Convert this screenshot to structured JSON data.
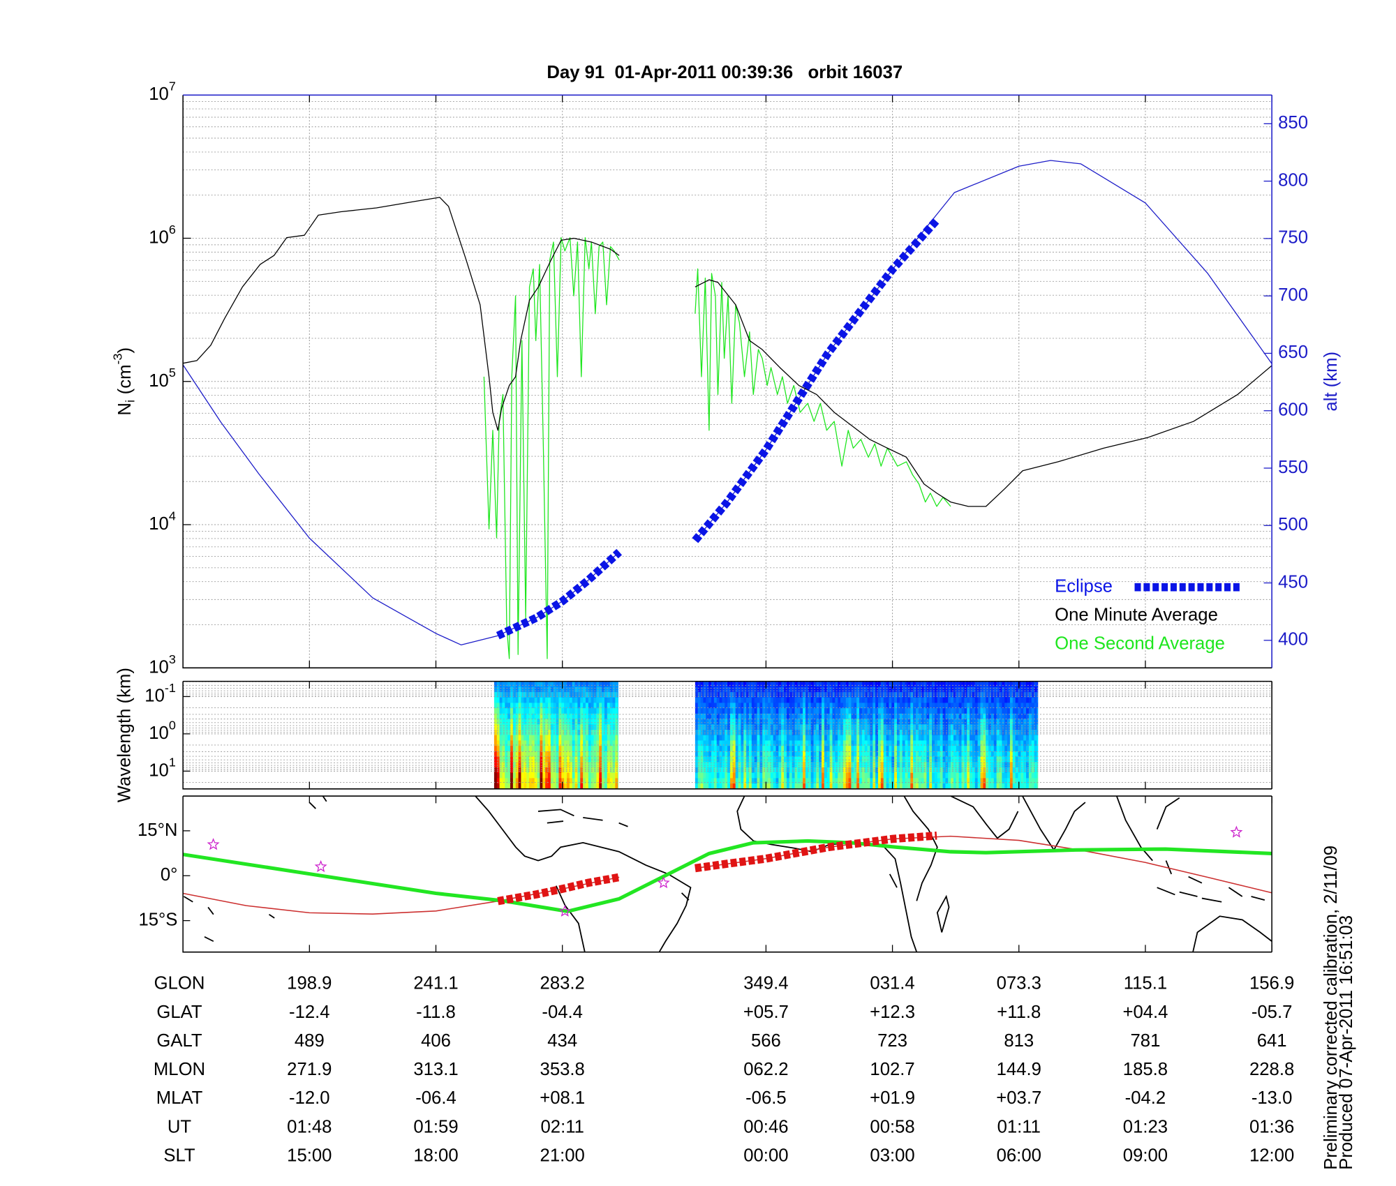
{
  "chart_data": [
    {
      "type": "line",
      "title": "Day 91  01-Apr-2011 00:39:36   orbit 16037",
      "ylabel": {
        "symbol": "N",
        "subscript": "i",
        "unit": "(cm",
        "exponent": "-3",
        "close": ")"
      },
      "y2label": "alt (km)",
      "y2_color": "#1c1cc8",
      "xlim": [
        0,
        8.61
      ],
      "xticks": [
        1,
        2,
        3,
        4.61,
        5.61,
        6.61,
        7.61,
        8.61
      ],
      "ylim": [
        1000,
        10000000
      ],
      "yscale": "log",
      "yticks": [
        {
          "value": 1000,
          "label": "10",
          "exponent": "3"
        },
        {
          "value": 10000,
          "label": "10",
          "exponent": "4"
        },
        {
          "value": 100000,
          "label": "10",
          "exponent": "5"
        },
        {
          "value": 1000000,
          "label": "10",
          "exponent": "6"
        },
        {
          "value": 10000000,
          "label": "10",
          "exponent": "7"
        }
      ],
      "y2lim": [
        376,
        875
      ],
      "y2ticks": [
        400,
        450,
        500,
        550,
        600,
        650,
        700,
        750,
        800,
        850
      ],
      "grid": true,
      "legend": "lower right",
      "series": [
        {
          "name": "Eclipse",
          "color": "#0a14e6",
          "axis": "y2",
          "style": "dashed",
          "x": [
            2.49,
            2.8,
            3.0,
            3.2,
            3.45,
            3.75,
            4.05,
            4.3,
            4.61,
            5.1,
            5.61,
            5.96
          ],
          "values": [
            404,
            420,
            434,
            452,
            477,
            null,
            487,
            520,
            566,
            650,
            723,
            766
          ]
        },
        {
          "name": "One Minute Average",
          "color": "#000000",
          "style": "thin",
          "x": [
            0,
            0.11,
            0.22,
            0.33,
            0.47,
            0.61,
            0.72,
            0.82,
            0.96,
            1.07,
            1.25,
            1.53,
            1.82,
            2.03,
            2.1,
            2.24,
            2.35,
            2.42,
            2.45,
            2.49,
            2.52,
            2.58,
            2.63,
            2.67,
            2.74,
            2.81,
            2.91,
            2.99,
            3.09,
            3.23,
            3.38,
            3.45,
            3.75,
            4.05,
            4.16,
            4.23,
            4.37,
            4.48,
            4.58,
            4.72,
            4.87,
            5.01,
            5.15,
            5.29,
            5.43,
            5.57,
            5.72,
            5.86,
            5.96,
            6.07,
            6.21,
            6.35,
            6.5,
            6.64,
            6.92,
            7.28,
            7.63,
            7.99,
            8.34,
            8.61
          ],
          "values": [
            134000,
            140000,
            179000,
            276000,
            457000,
            656000,
            758000,
            1010000,
            1050000,
            1450000,
            1530000,
            1630000,
            1800000,
            1930000,
            1670000,
            704000,
            343000,
            108000,
            60800,
            45600,
            65300,
            93700,
            108000,
            193000,
            369000,
            457000,
            704000,
            968000,
            1000000,
            940000,
            838000,
            758000,
            null,
            457000,
            513000,
            492000,
            343000,
            193000,
            167000,
            125000,
            93700,
            81100,
            60800,
            49000,
            39400,
            34200,
            29600,
            19200,
            16600,
            14400,
            13400,
            13400,
            17900,
            23800,
            27500,
            34200,
            40600,
            52600,
            81100,
            129000
          ]
        },
        {
          "name": "One Second Average",
          "color": "#1ee61e",
          "style": "thin",
          "x": [
            2.38,
            2.42,
            2.45,
            2.48,
            2.5,
            2.53,
            2.56,
            2.58,
            2.6,
            2.63,
            2.65,
            2.68,
            2.71,
            2.74,
            2.77,
            2.79,
            2.82,
            2.85,
            2.88,
            2.9,
            2.93,
            2.96,
            2.99,
            3.02,
            3.06,
            3.09,
            3.12,
            3.15,
            3.18,
            3.21,
            3.23,
            3.26,
            3.29,
            3.32,
            3.35,
            3.38,
            3.41,
            3.45,
            3.75,
            4.05,
            4.07,
            4.1,
            4.13,
            4.16,
            4.18,
            4.21,
            4.23,
            4.26,
            4.28,
            4.31,
            4.34,
            4.37,
            4.4,
            4.44,
            4.48,
            4.51,
            4.55,
            4.58,
            4.62,
            4.65,
            4.7,
            4.74,
            4.78,
            4.83,
            4.88,
            4.94,
            4.99,
            5.04,
            5.09,
            5.15,
            5.21,
            5.26,
            5.3,
            5.36,
            5.42,
            5.47,
            5.52,
            5.57,
            5.65,
            5.72,
            5.77,
            5.82,
            5.87,
            5.91,
            5.96,
            6.01,
            6.07
          ],
          "values": [
            108000,
            9330,
            45600,
            8090,
            52600,
            81100,
            1910,
            1160,
            108000,
            396000,
            1240,
            193000,
            2210,
            457000,
            611000,
            193000,
            656000,
            34200,
            1160,
            704000,
            940000,
            108000,
            1010000,
            815000,
            1010000,
            396000,
            940000,
            108000,
            1010000,
            611000,
            940000,
            297000,
            875000,
            940000,
            343000,
            875000,
            815000,
            704000,
            null,
            297000,
            611000,
            108000,
            528000,
            45600,
            568000,
            396000,
            81100,
            492000,
            145000,
            396000,
            70300,
            343000,
            257000,
            108000,
            222000,
            81100,
            167000,
            145000,
            93700,
            125000,
            81100,
            108000,
            70300,
            93700,
            60800,
            70300,
            52600,
            70300,
            45600,
            52600,
            25600,
            45600,
            34200,
            39400,
            29600,
            36700,
            25600,
            34200,
            25600,
            27500,
            22200,
            19200,
            14400,
            16600,
            13400,
            15500,
            13400
          ]
        },
        {
          "color": "#1c1cc8",
          "axis": "y2",
          "style": "thin",
          "x": [
            0,
            0.3,
            0.6,
            1.0,
            1.5,
            2.0,
            2.2,
            2.49,
            2.8,
            3.0,
            3.2,
            3.45,
            3.75,
            4.05,
            4.3,
            4.61,
            5.1,
            5.61,
            6.1,
            6.61,
            6.86,
            7.1,
            7.61,
            8.1,
            8.61
          ],
          "values": [
            640,
            590,
            545,
            489,
            437,
            406,
            396,
            404,
            420,
            434,
            452,
            477,
            null,
            487,
            520,
            566,
            650,
            723,
            790,
            813,
            818,
            815,
            781,
            720,
            641
          ]
        }
      ]
    },
    {
      "type": "spectrogram",
      "ylabel": "Wavelength (km)",
      "xlim": [
        0,
        8.61
      ],
      "xticks": [
        1,
        2,
        3,
        4.61,
        5.61,
        6.61,
        7.61,
        8.61
      ],
      "ylim": [
        0.039,
        30
      ],
      "yscale": "log",
      "yinverted": true,
      "yticks": [
        {
          "value": 0.1,
          "label": "10",
          "exponent": "-1"
        },
        {
          "value": 1,
          "label": "10",
          "exponent": "0"
        },
        {
          "value": 10,
          "label": "10",
          "exponent": "1"
        }
      ],
      "xranges": [
        [
          2.46,
          3.44
        ],
        [
          4.05,
          6.76
        ]
      ]
    },
    {
      "type": "map",
      "xlim": [
        0,
        8.61
      ],
      "xticks": [
        1,
        2,
        3,
        4.61,
        5.61,
        6.61,
        7.61,
        8.61
      ],
      "ylim": [
        -25.5,
        26.6
      ],
      "yticks": [
        {
          "value": 15,
          "label": "15°N"
        },
        {
          "value": 0,
          "label": "0°"
        },
        {
          "value": -15,
          "label": "15°S"
        }
      ],
      "series": [
        {
          "color": "#cc3030",
          "style": "thin",
          "x": [
            0,
            0.5,
            1,
            1.5,
            2,
            2.49,
            3,
            3.45,
            3.75,
            4.05,
            4.61,
            5.1,
            5.61,
            6.07,
            6.61,
            7.1,
            7.61,
            8.1,
            8.61
          ],
          "values": [
            -5.9,
            -10,
            -12.4,
            -12.8,
            -11.8,
            -8.5,
            -4.4,
            -0.5,
            null,
            2.5,
            5.7,
            9.5,
            12.3,
            13.2,
            11.8,
            8.5,
            4.4,
            -0.5,
            -5.7
          ]
        },
        {
          "color": "#22e622",
          "style": "thick",
          "x": [
            0,
            1,
            2,
            2.52,
            3.04,
            3.45,
            3.77,
            4.16,
            4.51,
            4.94,
            5.29,
            5.65,
            6.07,
            6.35,
            7.06,
            7.77,
            8.61
          ],
          "values": [
            7.1,
            0.6,
            -5.9,
            -8.3,
            -11.9,
            -7.7,
            -0.9,
            7.4,
            11.0,
            11.6,
            11.0,
            9.5,
            8.0,
            7.7,
            8.6,
            8.9,
            7.4
          ]
        },
        {
          "color": "#e01414",
          "style": "dashed",
          "x": [
            2.49,
            2.8,
            3.0,
            3.2,
            3.45,
            3.75,
            4.05,
            4.3,
            4.61,
            5.1,
            5.61,
            5.96
          ],
          "values": [
            -8.5,
            -6.2,
            -4.4,
            -2.4,
            -0.5,
            null,
            2.5,
            4.0,
            5.7,
            9.5,
            12.3,
            13.4
          ]
        }
      ],
      "stars": {
        "color": "#cc22cc",
        "x": [
          0.24,
          1.09,
          3.02,
          3.8,
          8.33
        ],
        "values": [
          10.4,
          3.0,
          -11.9,
          -2.4,
          14.5
        ]
      }
    }
  ],
  "table": {
    "rows": [
      {
        "label": "GLON",
        "values": [
          "198.9",
          "241.1",
          "283.2",
          "349.4",
          "031.4",
          "073.3",
          "115.1",
          "156.9"
        ]
      },
      {
        "label": "GLAT",
        "values": [
          "-12.4",
          "-11.8",
          "-04.4",
          "+05.7",
          "+12.3",
          "+11.8",
          "+04.4",
          "-05.7"
        ]
      },
      {
        "label": "GALT",
        "values": [
          "489",
          "406",
          "434",
          "566",
          "723",
          "813",
          "781",
          "641"
        ]
      },
      {
        "label": "MLON",
        "values": [
          "271.9",
          "313.1",
          "353.8",
          "062.2",
          "102.7",
          "144.9",
          "185.8",
          "228.8"
        ]
      },
      {
        "label": "MLAT",
        "values": [
          "-12.0",
          "-06.4",
          "+08.1",
          "-06.5",
          "+01.9",
          "+03.7",
          "-04.2",
          "-13.0"
        ]
      },
      {
        "label": "UT",
        "values": [
          "01:48",
          "01:59",
          "02:11",
          "00:46",
          "00:58",
          "01:11",
          "01:23",
          "01:36"
        ]
      },
      {
        "label": "SLT",
        "values": [
          "15:00",
          "18:00",
          "21:00",
          "00:00",
          "03:00",
          "06:00",
          "09:00",
          "12:00"
        ]
      }
    ]
  },
  "footer_notes": [
    "Preliminary corrected calibration, 2/11/09",
    "Produced 07-Apr-2011 16:51:03"
  ]
}
